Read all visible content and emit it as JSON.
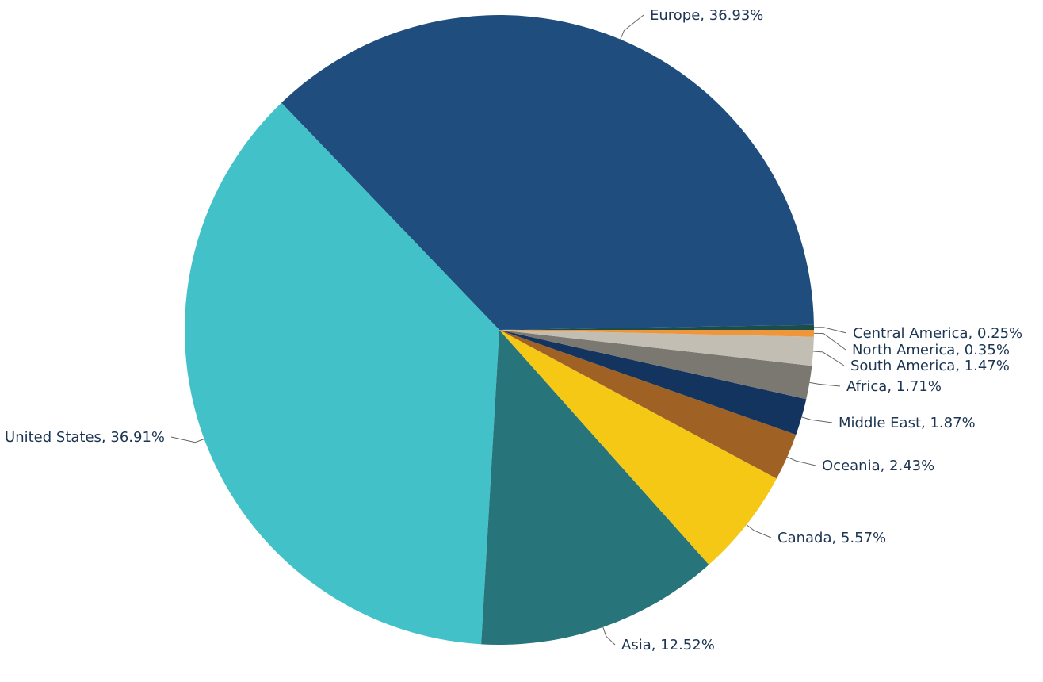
{
  "chart_data": {
    "type": "pie",
    "start_angle_deg": 0,
    "direction": "counterclockwise",
    "slices": [
      {
        "label": "Central America",
        "value": 0.25,
        "text": "Central America, 0.25%",
        "color": "#1b4d4a"
      },
      {
        "label": "Europe",
        "value": 36.93,
        "text": "Europe, 36.93%",
        "color": "#1f4e7e"
      },
      {
        "label": "United States",
        "value": 36.91,
        "text": "United States, 36.91%",
        "color": "#42c1c8"
      },
      {
        "label": "Asia",
        "value": 12.52,
        "text": "Asia, 12.52%",
        "color": "#27757a"
      },
      {
        "label": "Canada",
        "value": 5.57,
        "text": "Canada, 5.57%",
        "color": "#f5c816"
      },
      {
        "label": "Oceania",
        "value": 2.43,
        "text": "Oceania, 2.43%",
        "color": "#a06224"
      },
      {
        "label": "Middle East",
        "value": 1.87,
        "text": "Middle East, 1.87%",
        "color": "#13345e"
      },
      {
        "label": "Africa",
        "value": 1.71,
        "text": "Africa, 1.71%",
        "color": "#7a7870"
      },
      {
        "label": "South America",
        "value": 1.47,
        "text": "South America, 1.47%",
        "color": "#c3beb3"
      },
      {
        "label": "North America",
        "value": 0.35,
        "text": "North America, 0.35%",
        "color": "#f0963a"
      }
    ]
  }
}
